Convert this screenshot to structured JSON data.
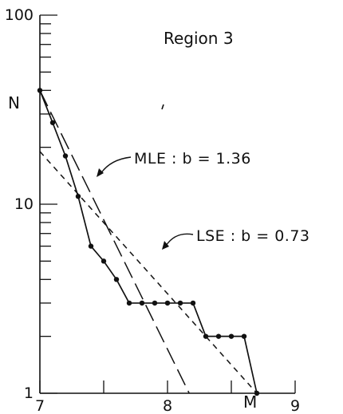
{
  "chart_data": {
    "type": "line",
    "title": "Region 3",
    "xlabel": "M",
    "ylabel": "N",
    "xlim": [
      7,
      9
    ],
    "ylim": [
      1,
      100
    ],
    "yscale": "log",
    "grid": false,
    "x_ticks": [
      "7",
      "8",
      "9"
    ],
    "y_ticks": [
      "1",
      "10",
      "100"
    ],
    "series": [
      {
        "style": "solid-with-dots",
        "x": [
          7.0,
          7.1,
          7.2,
          7.3,
          7.4,
          7.5,
          7.6,
          7.7,
          7.8,
          7.9,
          8.0,
          8.1,
          8.2,
          8.3,
          8.4,
          8.5,
          8.6,
          8.7
        ],
        "y": [
          40,
          27,
          18,
          11,
          6,
          5,
          4,
          3,
          3,
          3,
          3,
          3,
          3,
          2,
          2,
          2,
          2,
          1
        ]
      },
      {
        "style": "long-dash",
        "x": [
          7.0,
          8.17
        ],
        "y": [
          40,
          1
        ]
      },
      {
        "style": "short-dash",
        "x": [
          7.0,
          8.7
        ],
        "y": [
          19,
          1
        ]
      }
    ],
    "annotations": [
      {
        "text": "MLE : b  =  1.36"
      },
      {
        "text": "LSE : b  =  0.73"
      }
    ]
  }
}
